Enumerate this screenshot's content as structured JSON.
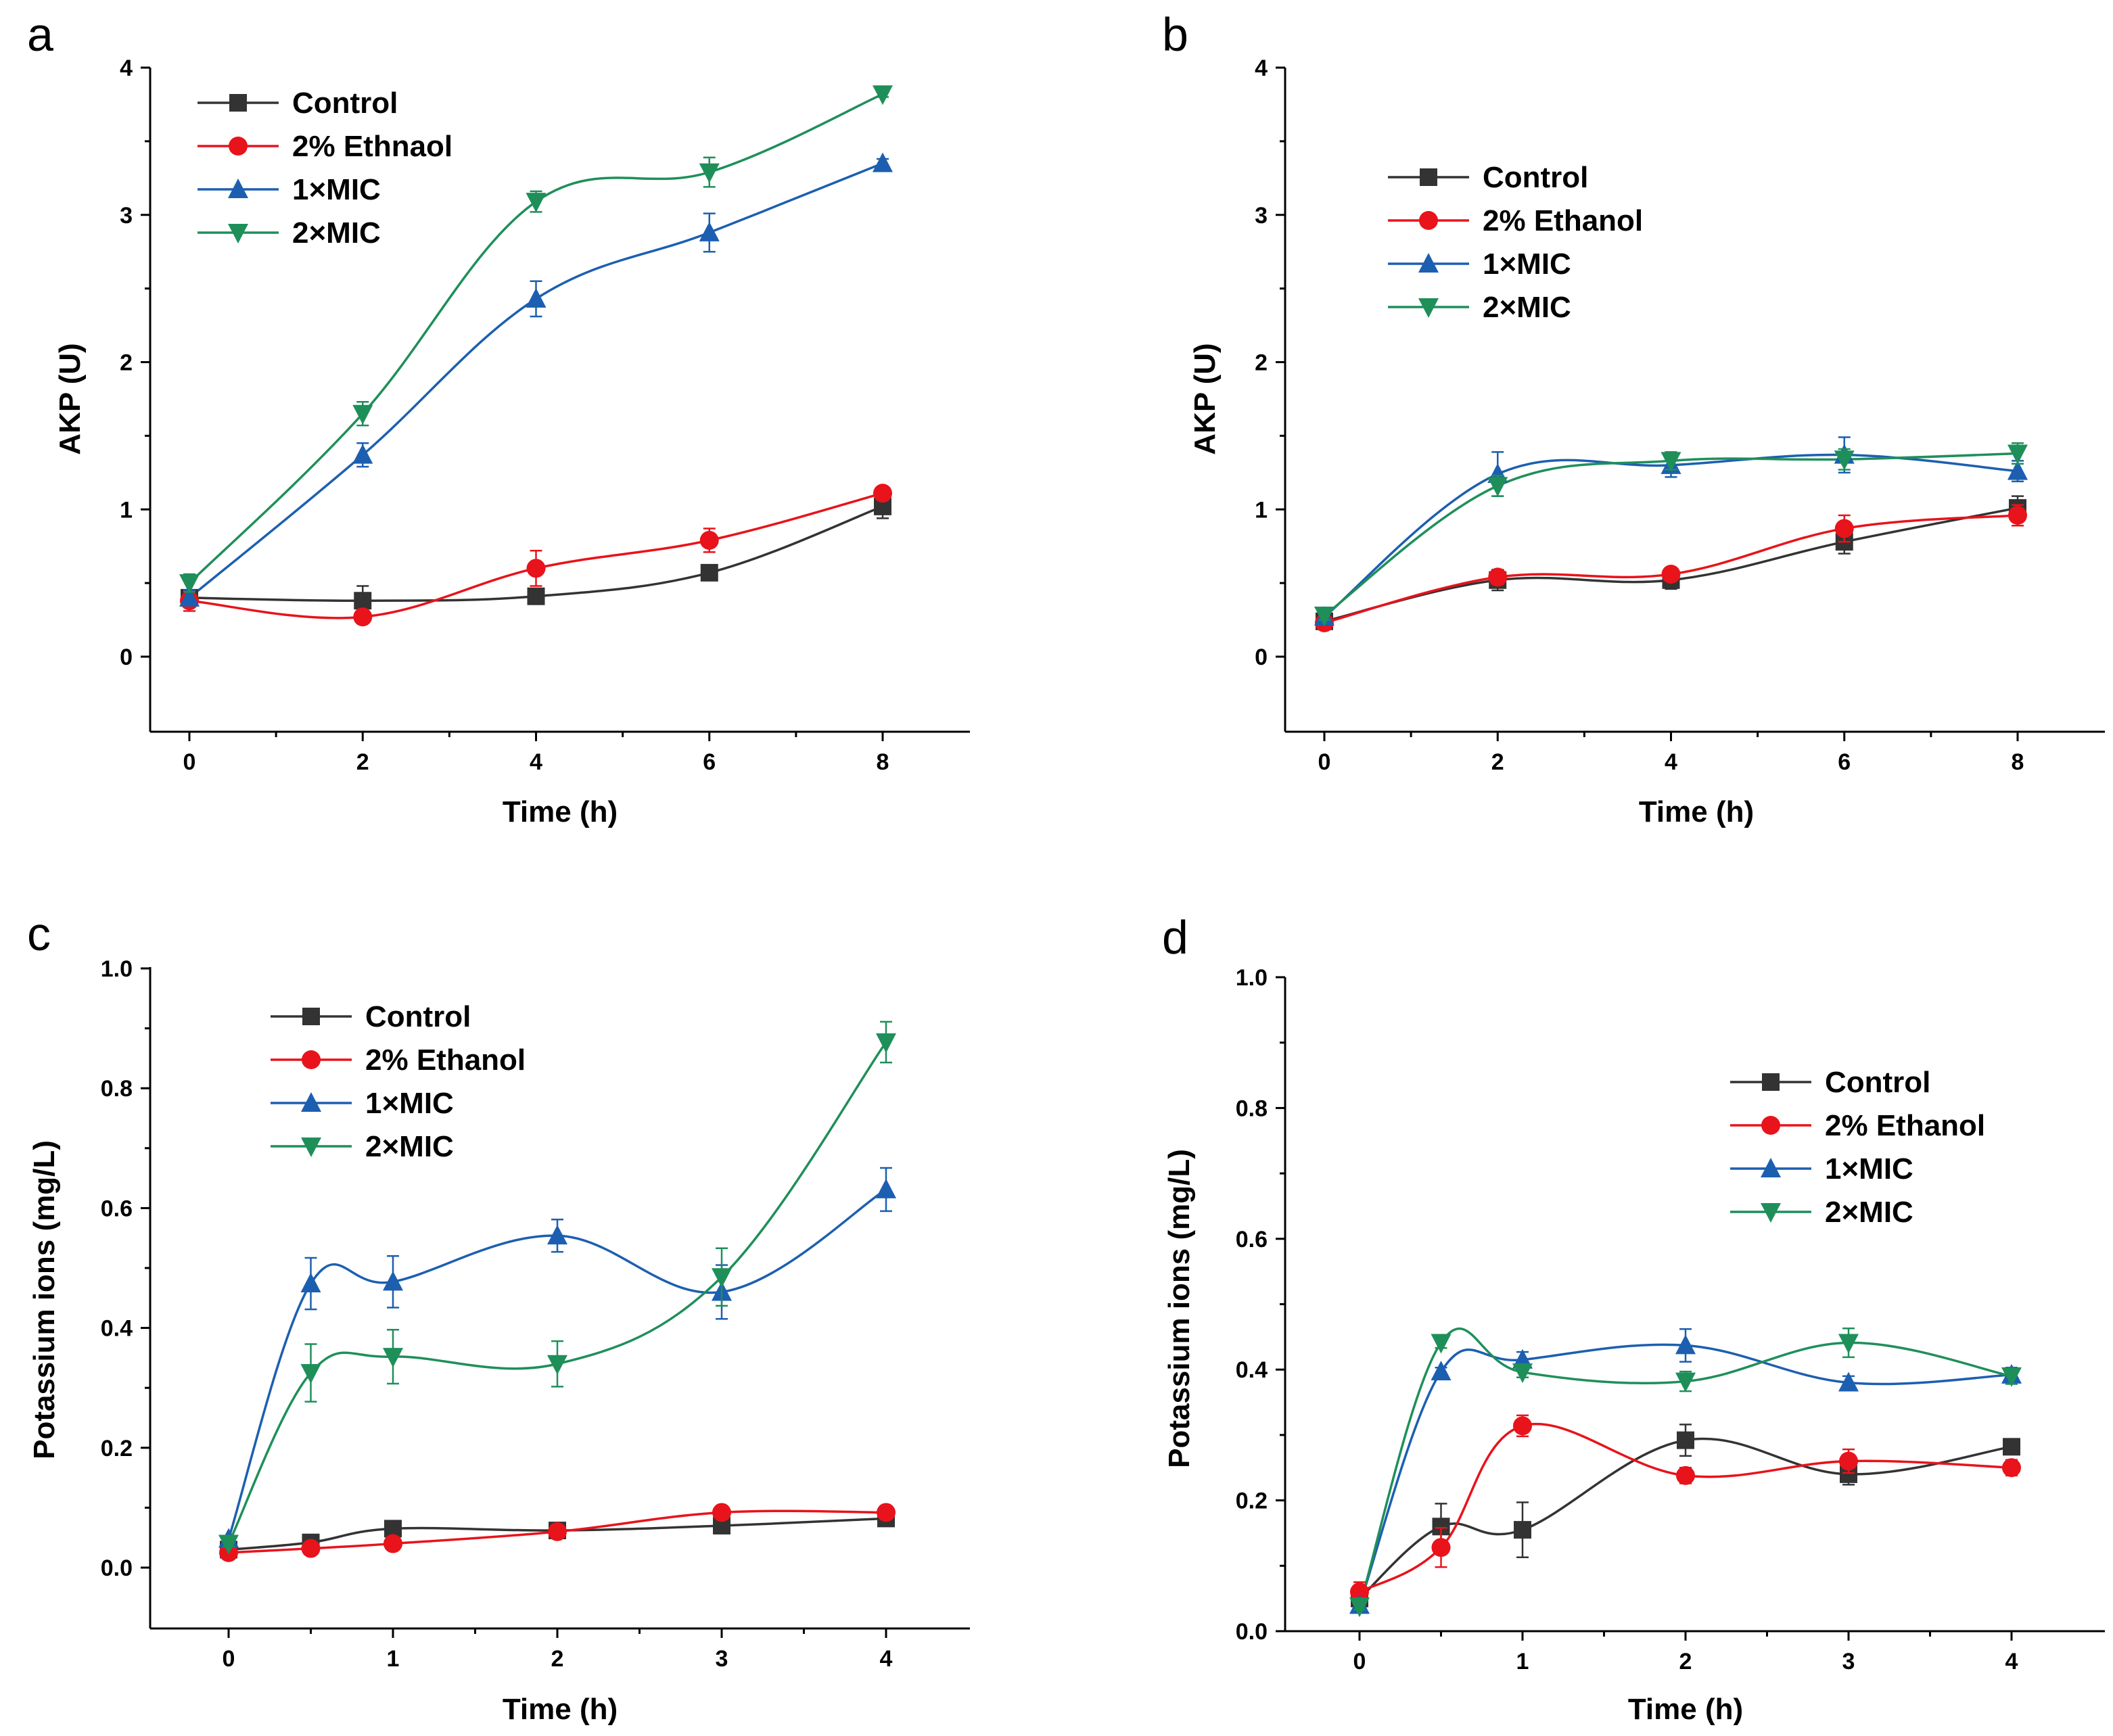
{
  "figure": {
    "background": "#ffffff"
  },
  "colors": {
    "control": "#333333",
    "ethanol": "#e8131b",
    "mic1": "#1c5fb0",
    "mic2": "#1f8f5a"
  },
  "chart_data": [
    {
      "type": "line",
      "panel": "a",
      "xlabel": "Time (h)",
      "ylabel": "AKP (U)",
      "xlim": [
        -0.5,
        9
      ],
      "ylim": [
        -0.5,
        4
      ],
      "xticks": [
        0,
        2,
        4,
        6,
        8
      ],
      "yticks": [
        0,
        1,
        2,
        3,
        4
      ],
      "x": [
        0,
        2,
        4,
        6,
        8
      ],
      "legend_position": "top-left",
      "series": [
        {
          "name": "Control",
          "color": "#333333",
          "marker": "square",
          "values": [
            0.4,
            0.38,
            0.41,
            0.57,
            1.02
          ],
          "errors": [
            0.04,
            0.1,
            0.03,
            0.03,
            0.08
          ]
        },
        {
          "name": "2% Ethnaol",
          "color": "#e8131b",
          "marker": "circle",
          "values": [
            0.38,
            0.27,
            0.6,
            0.79,
            1.11
          ],
          "errors": [
            0.07,
            0.03,
            0.12,
            0.08,
            0.03
          ]
        },
        {
          "name": "1×MIC",
          "color": "#1c5fb0",
          "marker": "triangle-up",
          "values": [
            0.4,
            1.37,
            2.43,
            2.88,
            3.35
          ],
          "errors": [
            0.05,
            0.08,
            0.12,
            0.13,
            0.03
          ]
        },
        {
          "name": "2×MIC",
          "color": "#1f8f5a",
          "marker": "triangle-down",
          "values": [
            0.5,
            1.65,
            3.09,
            3.29,
            3.82
          ],
          "errors": [
            0.06,
            0.08,
            0.07,
            0.1,
            0.02
          ]
        }
      ]
    },
    {
      "type": "line",
      "panel": "b",
      "xlabel": "Time (h)",
      "ylabel": "AKP (U)",
      "xlim": [
        -0.5,
        9
      ],
      "ylim": [
        -0.5,
        4
      ],
      "xticks": [
        0,
        2,
        4,
        6,
        8
      ],
      "yticks": [
        0,
        1,
        2,
        3,
        4
      ],
      "x": [
        0,
        2,
        4,
        6,
        8
      ],
      "legend_position": "upper-middle",
      "series": [
        {
          "name": "Control",
          "color": "#333333",
          "marker": "square",
          "values": [
            0.24,
            0.52,
            0.52,
            0.78,
            1.01
          ],
          "errors": [
            0.02,
            0.07,
            0.06,
            0.08,
            0.08
          ]
        },
        {
          "name": "2% Ethanol",
          "color": "#e8131b",
          "marker": "circle",
          "values": [
            0.23,
            0.54,
            0.56,
            0.87,
            0.96
          ],
          "errors": [
            0.02,
            0.05,
            0.04,
            0.09,
            0.07
          ]
        },
        {
          "name": "1×MIC",
          "color": "#1c5fb0",
          "marker": "triangle-up",
          "values": [
            0.27,
            1.24,
            1.3,
            1.37,
            1.26
          ],
          "errors": [
            0.03,
            0.15,
            0.08,
            0.12,
            0.07
          ]
        },
        {
          "name": "2×MIC",
          "color": "#1f8f5a",
          "marker": "triangle-down",
          "values": [
            0.28,
            1.16,
            1.33,
            1.34,
            1.38
          ],
          "errors": [
            0.03,
            0.07,
            0.06,
            0.07,
            0.07
          ]
        }
      ]
    },
    {
      "type": "line",
      "panel": "c",
      "xlabel": "Time (h)",
      "ylabel": "Potassium ions (mg/L)",
      "xlim": [
        -0.5,
        4.5
      ],
      "ylim": [
        -0.1,
        1.0
      ],
      "xticks": [
        0,
        1,
        2,
        3,
        4
      ],
      "yticks": [
        0.0,
        0.2,
        0.4,
        0.6,
        0.8,
        1.0
      ],
      "x": [
        0,
        0.5,
        1,
        2,
        3,
        4
      ],
      "legend_position": "upper-middle",
      "series": [
        {
          "name": "Control",
          "color": "#333333",
          "marker": "square",
          "values": [
            0.03,
            0.042,
            0.065,
            0.062,
            0.07,
            0.082
          ],
          "errors": [
            0.003,
            0.004,
            0.005,
            0.004,
            0.004,
            0.005
          ]
        },
        {
          "name": "2% Ethanol",
          "color": "#e8131b",
          "marker": "circle",
          "values": [
            0.025,
            0.032,
            0.04,
            0.06,
            0.092,
            0.092
          ],
          "errors": [
            0.003,
            0.003,
            0.003,
            0.004,
            0.004,
            0.004
          ]
        },
        {
          "name": "1×MIC",
          "color": "#1c5fb0",
          "marker": "triangle-up",
          "values": [
            0.048,
            0.474,
            0.477,
            0.554,
            0.46,
            0.631
          ],
          "errors": [
            0.005,
            0.043,
            0.043,
            0.027,
            0.045,
            0.036
          ]
        },
        {
          "name": "2×MIC",
          "color": "#1f8f5a",
          "marker": "triangle-down",
          "values": [
            0.04,
            0.325,
            0.352,
            0.34,
            0.485,
            0.877
          ],
          "errors": [
            0.005,
            0.048,
            0.045,
            0.038,
            0.048,
            0.034
          ]
        }
      ]
    },
    {
      "type": "line",
      "panel": "d",
      "xlabel": "Time (h)",
      "ylabel": "Potassium ions (mg/L)",
      "xlim": [
        -0.5,
        4.5
      ],
      "ylim": [
        0.0,
        1.0
      ],
      "xticks": [
        0,
        1,
        2,
        3,
        4
      ],
      "yticks": [
        0.0,
        0.2,
        0.4,
        0.6,
        0.8,
        1.0
      ],
      "x": [
        0,
        0.5,
        1,
        2,
        3,
        4
      ],
      "legend_position": "upper-right",
      "series": [
        {
          "name": "Control",
          "color": "#333333",
          "marker": "square",
          "values": [
            0.05,
            0.16,
            0.155,
            0.292,
            0.24,
            0.282
          ],
          "errors": [
            0.01,
            0.035,
            0.042,
            0.024,
            0.016,
            0.009
          ]
        },
        {
          "name": "2% Ethanol",
          "color": "#e8131b",
          "marker": "circle",
          "values": [
            0.06,
            0.128,
            0.314,
            0.238,
            0.26,
            0.25
          ],
          "errors": [
            0.015,
            0.03,
            0.016,
            0.012,
            0.018,
            0.012
          ]
        },
        {
          "name": "1×MIC",
          "color": "#1c5fb0",
          "marker": "triangle-up",
          "values": [
            0.04,
            0.397,
            0.415,
            0.437,
            0.38,
            0.392
          ],
          "errors": [
            0.005,
            0.006,
            0.012,
            0.025,
            0.01,
            0.011
          ]
        },
        {
          "name": "2×MIC",
          "color": "#1f8f5a",
          "marker": "triangle-down",
          "values": [
            0.038,
            0.441,
            0.396,
            0.382,
            0.441,
            0.39
          ],
          "errors": [
            0.005,
            0.008,
            0.008,
            0.015,
            0.022,
            0.012
          ]
        }
      ]
    }
  ]
}
